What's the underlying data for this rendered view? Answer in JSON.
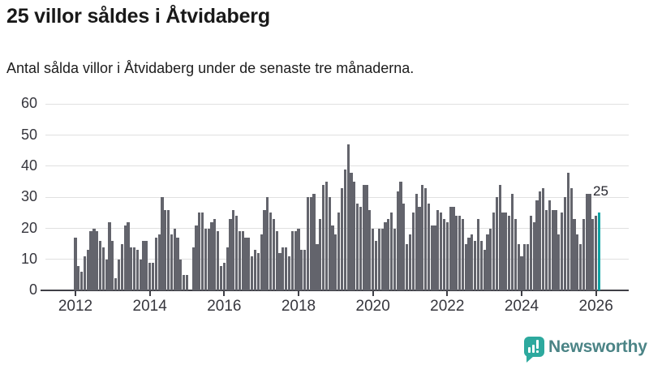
{
  "header": {
    "title": "25 villor såldes i Åtvidaberg",
    "subtitle": "Antal sålda villor i Åtvidaberg under de senaste tre månaderna."
  },
  "chart_data": {
    "type": "bar",
    "title": "25 villor såldes i Åtvidaberg",
    "xlabel": "",
    "ylabel": "",
    "ylim": [
      0,
      60
    ],
    "grid": true,
    "legend": "none",
    "y_ticks": [
      0,
      10,
      20,
      30,
      40,
      50,
      60
    ],
    "x_ticks": [
      2012,
      2014,
      2016,
      2018,
      2020,
      2022,
      2024,
      2026
    ],
    "start_month": "2012-01",
    "values": [
      17,
      8,
      6,
      11,
      13,
      19,
      20,
      19,
      16,
      14,
      10,
      22,
      16,
      4,
      10,
      15,
      21,
      22,
      14,
      14,
      13,
      10,
      16,
      16,
      9,
      9,
      17,
      18,
      30,
      26,
      26,
      18,
      20,
      17,
      10,
      5,
      5,
      0,
      14,
      21,
      25,
      25,
      20,
      20,
      22,
      23,
      19,
      8,
      9,
      14,
      23,
      26,
      24,
      19,
      19,
      17,
      17,
      11,
      13,
      12,
      18,
      26,
      30,
      25,
      23,
      19,
      12,
      14,
      14,
      11,
      19,
      19,
      20,
      13,
      13,
      30,
      30,
      31,
      15,
      23,
      34,
      35,
      30,
      21,
      18,
      25,
      33,
      39,
      47,
      38,
      35,
      28,
      27,
      34,
      34,
      26,
      20,
      16,
      20,
      20,
      22,
      23,
      25,
      20,
      32,
      35,
      28,
      15,
      18,
      25,
      31,
      27,
      34,
      33,
      28,
      21,
      21,
      26,
      25,
      23,
      22,
      27,
      27,
      24,
      24,
      23,
      15,
      17,
      18,
      16,
      23,
      16,
      13,
      18,
      20,
      25,
      30,
      34,
      25,
      25,
      24,
      31,
      23,
      15,
      11,
      15,
      15,
      24,
      22,
      29,
      32,
      33,
      26,
      29,
      26,
      26,
      18,
      25,
      30,
      38,
      33,
      23,
      18,
      15,
      23,
      31,
      31,
      23,
      24,
      25
    ],
    "highlight": {
      "index": 169,
      "label": "25",
      "color": "#0fa3a3"
    },
    "bar_color": "#63646c"
  },
  "footer": {
    "brand": "Newsworthy"
  },
  "colors": {
    "accent_teal": "#0fa3a3",
    "bar_gray": "#63646c",
    "logo_teal": "#2da99e",
    "logo_text": "#4b8486",
    "grid": "#e0e0e0",
    "axis": "#3f3f46"
  }
}
